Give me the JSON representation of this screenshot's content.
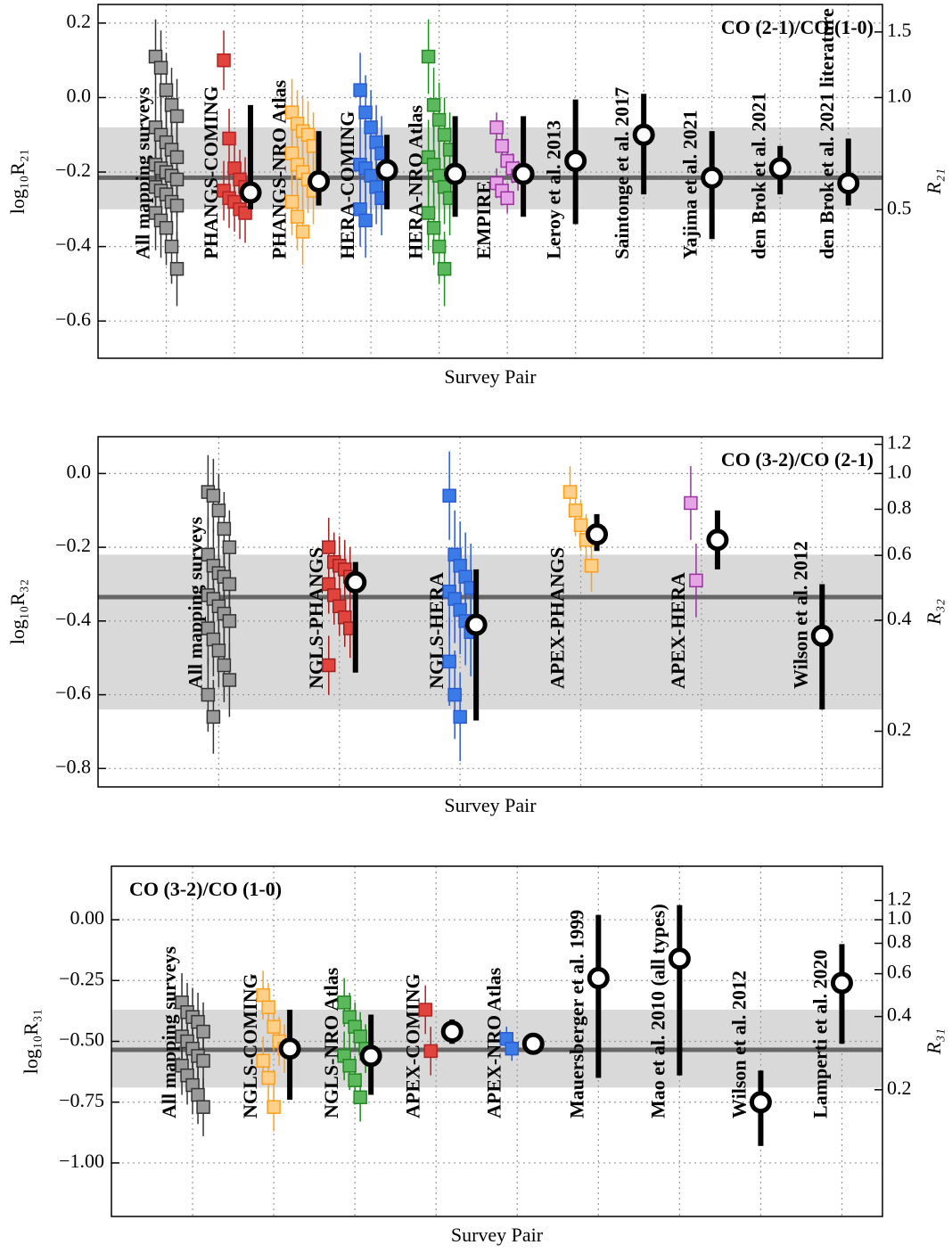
{
  "chart_data": [
    {
      "type": "errorbar",
      "xlabel": "Survey Pair",
      "ylabel": "log₁₀R₂₁",
      "y2label": "R₂₁",
      "annotation": "CO (2-1)/CO (1-0)",
      "annotation_corner": "upper right",
      "ylim": [
        -0.7,
        0.25
      ],
      "yticks": [
        {
          "value": 0.2,
          "label": "0.2"
        },
        {
          "value": 0,
          "label": "0.0"
        },
        {
          "value": -0.2,
          "label": "−0.2"
        },
        {
          "value": -0.4,
          "label": "−0.4"
        },
        {
          "value": -0.6,
          "label": "−0.6"
        }
      ],
      "y2scale": "log",
      "y2ticks": [
        0.5,
        {
          "value": 1,
          "label": "1.0"
        },
        1.5
      ],
      "grid": true,
      "band": {
        "center": -0.215,
        "range": [
          -0.3,
          -0.08
        ]
      },
      "groups": [
        {
          "name": "All mapping surveys",
          "color": "#9a9a9a",
          "edgecolor": "#333333",
          "label_color": "#000000",
          "error": 0.1,
          "values": [
            0.11,
            0.08,
            0.02,
            -0.02,
            -0.05,
            -0.08,
            -0.1,
            -0.12,
            -0.14,
            -0.16,
            -0.18,
            -0.19,
            -0.2,
            -0.21,
            -0.22,
            -0.24,
            -0.25,
            -0.26,
            -0.28,
            -0.29,
            -0.31,
            -0.33,
            -0.35,
            -0.4,
            -0.46
          ]
        },
        {
          "name": "PHANGS-COMING",
          "color": "#e0443c",
          "edgecolor": "#b22222",
          "label_color": "#b22222",
          "error": 0.08,
          "values": [
            0.1,
            -0.11,
            -0.19,
            -0.22,
            -0.24,
            -0.25,
            -0.27,
            -0.28,
            -0.3,
            -0.31
          ],
          "median": -0.255,
          "range": [
            -0.3,
            -0.02
          ]
        },
        {
          "name": "PHANGS-NRO Atlas",
          "color": "#ffd08a",
          "edgecolor": "#ff9f1c",
          "label_color": "#ff9f1c",
          "error": 0.09,
          "values": [
            -0.04,
            -0.07,
            -0.09,
            -0.1,
            -0.13,
            -0.15,
            -0.18,
            -0.2,
            -0.22,
            -0.25,
            -0.28,
            -0.32,
            -0.36
          ],
          "median": -0.225,
          "range": [
            -0.29,
            -0.09
          ]
        },
        {
          "name": "HERA-COMING",
          "color": "#3a7be8",
          "edgecolor": "#2a5bd0",
          "label_color": "#3a6fe0",
          "error": 0.1,
          "values": [
            0.02,
            -0.04,
            -0.08,
            -0.12,
            -0.15,
            -0.18,
            -0.19,
            -0.21,
            -0.24,
            -0.27,
            -0.3,
            -0.33
          ],
          "median": -0.195,
          "range": [
            -0.3,
            -0.1
          ]
        },
        {
          "name": "HERA-NRO Atlas",
          "color": "#5cb85c",
          "edgecolor": "#1f8a1f",
          "label_color": "#228b22",
          "error": 0.1,
          "values": [
            0.11,
            -0.02,
            -0.06,
            -0.1,
            -0.14,
            -0.16,
            -0.18,
            -0.21,
            -0.24,
            -0.27,
            -0.31,
            -0.35,
            -0.4,
            -0.46
          ],
          "median": -0.205,
          "range": [
            -0.32,
            -0.05
          ]
        },
        {
          "name": "EMPIRE",
          "color": "#e6a3e6",
          "edgecolor": "#9932a0",
          "label_color": "#8b008b",
          "error": 0.04,
          "values": [
            -0.08,
            -0.13,
            -0.17,
            -0.19,
            -0.21,
            -0.23,
            -0.25,
            -0.27
          ],
          "median": -0.205,
          "range": [
            -0.32,
            -0.05
          ]
        },
        {
          "name": "Leroy et al. 2013",
          "color": "#000000",
          "label_color": "#000000",
          "median": -0.17,
          "range": [
            -0.34,
            -0.005
          ]
        },
        {
          "name": "Saintonge et al. 2017",
          "color": "#000000",
          "label_color": "#000000",
          "median": -0.1,
          "range": [
            -0.26,
            0.01
          ]
        },
        {
          "name": "Yajima et al. 2021",
          "color": "#000000",
          "label_color": "#000000",
          "median": -0.215,
          "range": [
            -0.38,
            -0.09
          ]
        },
        {
          "name": "den Brok et al. 2021",
          "color": "#000000",
          "label_color": "#000000",
          "median": -0.19,
          "range": [
            -0.26,
            -0.13
          ]
        },
        {
          "name": "den Brok et al. 2021 literature",
          "color": "#000000",
          "label_color": "#000000",
          "median": -0.23,
          "range": [
            -0.29,
            -0.11
          ]
        }
      ]
    },
    {
      "type": "errorbar",
      "xlabel": "Survey Pair",
      "ylabel": "log₁₀R₃₂",
      "y2label": "R₃₂",
      "annotation": "CO (3-2)/CO (2-1)",
      "annotation_corner": "upper right",
      "ylim": [
        -0.85,
        0.1
      ],
      "yticks": [
        {
          "value": 0,
          "label": "0.0"
        },
        {
          "value": -0.2,
          "label": "−0.2"
        },
        {
          "value": -0.4,
          "label": "−0.4"
        },
        {
          "value": -0.6,
          "label": "−0.6"
        },
        {
          "value": -0.8,
          "label": "−0.8"
        }
      ],
      "y2scale": "log",
      "y2ticks": [
        0.2,
        0.4,
        0.6,
        0.8,
        {
          "value": 1,
          "label": "1.0"
        },
        1.2
      ],
      "grid": true,
      "band": {
        "center": -0.335,
        "range": [
          -0.64,
          -0.22
        ]
      },
      "groups": [
        {
          "name": "All mapping surveys",
          "color": "#9a9a9a",
          "edgecolor": "#333333",
          "label_color": "#000000",
          "error": 0.1,
          "values": [
            -0.05,
            -0.06,
            -0.1,
            -0.15,
            -0.2,
            -0.22,
            -0.25,
            -0.27,
            -0.28,
            -0.3,
            -0.33,
            -0.34,
            -0.36,
            -0.38,
            -0.4,
            -0.42,
            -0.45,
            -0.48,
            -0.52,
            -0.56,
            -0.6,
            -0.66
          ]
        },
        {
          "name": "NGLS-PHANGS",
          "color": "#e0443c",
          "edgecolor": "#a02020",
          "label_color": "#b22222",
          "error": 0.08,
          "values": [
            -0.2,
            -0.24,
            -0.25,
            -0.26,
            -0.28,
            -0.3,
            -0.33,
            -0.36,
            -0.39,
            -0.42,
            -0.52
          ],
          "median": -0.295,
          "range": [
            -0.54,
            -0.24
          ]
        },
        {
          "name": "NGLS-HERA",
          "color": "#3a7be8",
          "edgecolor": "#2a5bd0",
          "label_color": "#3a6fe0",
          "error": 0.12,
          "values": [
            -0.06,
            -0.22,
            -0.25,
            -0.28,
            -0.31,
            -0.32,
            -0.34,
            -0.37,
            -0.4,
            -0.43,
            -0.51,
            -0.6,
            -0.66
          ],
          "median": -0.41,
          "range": [
            -0.67,
            -0.26
          ]
        },
        {
          "name": "APEX-PHANGS",
          "color": "#ffd08a",
          "edgecolor": "#ff9f1c",
          "label_color": "#ff9f1c",
          "error": 0.07,
          "values": [
            -0.05,
            -0.1,
            -0.14,
            -0.18,
            -0.25
          ],
          "median": -0.165,
          "range": [
            -0.21,
            -0.11
          ]
        },
        {
          "name": "APEX-HERA",
          "color": "#e6a3e6",
          "edgecolor": "#9932a0",
          "label_color": "#8b008b",
          "error": 0.1,
          "values": [
            -0.08,
            -0.29
          ],
          "median": -0.18,
          "range": [
            -0.26,
            -0.1
          ]
        },
        {
          "name": "Wilson et al. 2012",
          "color": "#000000",
          "label_color": "#000000",
          "median": -0.44,
          "range": [
            -0.64,
            -0.3
          ]
        }
      ]
    },
    {
      "type": "errorbar",
      "xlabel": "Survey Pair",
      "ylabel": "log₁₀R₃₁",
      "y2label": "R₃₁",
      "annotation": "CO (3-2)/CO (1-0)",
      "annotation_corner": "upper left",
      "ylim": [
        -1.22,
        0.22
      ],
      "yticks": [
        {
          "value": 0,
          "label": "0.00"
        },
        {
          "value": -0.25,
          "label": "−0.25"
        },
        {
          "value": -0.5,
          "label": "−0.50"
        },
        {
          "value": -0.75,
          "label": "−0.75"
        },
        {
          "value": -1,
          "label": "−1.00"
        }
      ],
      "y2scale": "log",
      "y2ticks": [
        0.2,
        0.4,
        0.6,
        0.8,
        {
          "value": 1,
          "label": "1.0"
        },
        1.2
      ],
      "grid": true,
      "band": {
        "center": -0.535,
        "range": [
          -0.69,
          -0.37
        ]
      },
      "groups": [
        {
          "name": "All mapping surveys",
          "color": "#9a9a9a",
          "edgecolor": "#333333",
          "label_color": "#000000",
          "error": 0.12,
          "values": [
            -0.34,
            -0.38,
            -0.4,
            -0.42,
            -0.46,
            -0.48,
            -0.5,
            -0.53,
            -0.56,
            -0.58,
            -0.6,
            -0.64,
            -0.68,
            -0.72,
            -0.77
          ]
        },
        {
          "name": "NGLS-COMING",
          "color": "#ffd08a",
          "edgecolor": "#ff9f1c",
          "label_color": "#ff9f1c",
          "error": 0.1,
          "values": [
            -0.31,
            -0.36,
            -0.44,
            -0.5,
            -0.53,
            -0.58,
            -0.65,
            -0.77
          ],
          "median": -0.53,
          "range": [
            -0.74,
            -0.37
          ]
        },
        {
          "name": "NGLS-NRO Atlas",
          "color": "#5cb85c",
          "edgecolor": "#1f8a1f",
          "label_color": "#228b22",
          "error": 0.1,
          "values": [
            -0.34,
            -0.4,
            -0.44,
            -0.48,
            -0.53,
            -0.56,
            -0.6,
            -0.66,
            -0.73
          ],
          "median": -0.56,
          "range": [
            -0.72,
            -0.39
          ]
        },
        {
          "name": "APEX-COMING",
          "color": "#e0443c",
          "edgecolor": "#b22222",
          "label_color": "#b22222",
          "error": 0.1,
          "values": [
            -0.37,
            -0.54
          ],
          "median": -0.46,
          "range": [
            -0.51,
            -0.41
          ]
        },
        {
          "name": "APEX-NRO Atlas",
          "color": "#3a7be8",
          "edgecolor": "#2a5bd0",
          "label_color": "#3a6fe0",
          "error": 0.05,
          "values": [
            -0.49,
            -0.53
          ],
          "median": -0.51,
          "range": [
            -0.52,
            -0.5
          ]
        },
        {
          "name": "Mauersberger et al. 1999",
          "color": "#000000",
          "label_color": "#000000",
          "median": -0.24,
          "range": [
            -0.65,
            0.02
          ]
        },
        {
          "name": "Mao et al. 2010 (all types)",
          "color": "#000000",
          "label_color": "#000000",
          "median": -0.16,
          "range": [
            -0.64,
            0.06
          ]
        },
        {
          "name": "Wilson et al. 2012",
          "color": "#000000",
          "label_color": "#000000",
          "median": -0.75,
          "range": [
            -0.93,
            -0.62
          ]
        },
        {
          "name": "Lamperti et al. 2020",
          "color": "#000000",
          "label_color": "#000000",
          "median": -0.26,
          "range": [
            -0.51,
            -0.1
          ]
        }
      ]
    }
  ]
}
